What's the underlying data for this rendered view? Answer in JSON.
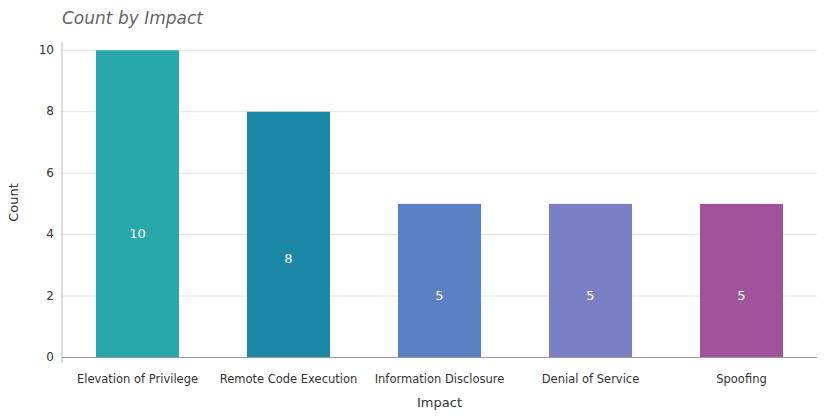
{
  "chart_data": {
    "type": "bar",
    "title": "Count by Impact",
    "xlabel": "Impact",
    "ylabel": "Count",
    "categories": [
      "Elevation of Privilege",
      "Remote Code Execution",
      "Information Disclosure",
      "Denial of Service",
      "Spoofing"
    ],
    "values": [
      10,
      8,
      5,
      5,
      5
    ],
    "colors": [
      "#29A8AB",
      "#1B88A8",
      "#5B7FC3",
      "#7B7FC4",
      "#A0529A"
    ],
    "ylim": [
      -0.18,
      10.27
    ],
    "yticks": [
      0,
      2,
      4,
      6,
      8,
      10
    ],
    "grid": true,
    "data_labels": true
  }
}
